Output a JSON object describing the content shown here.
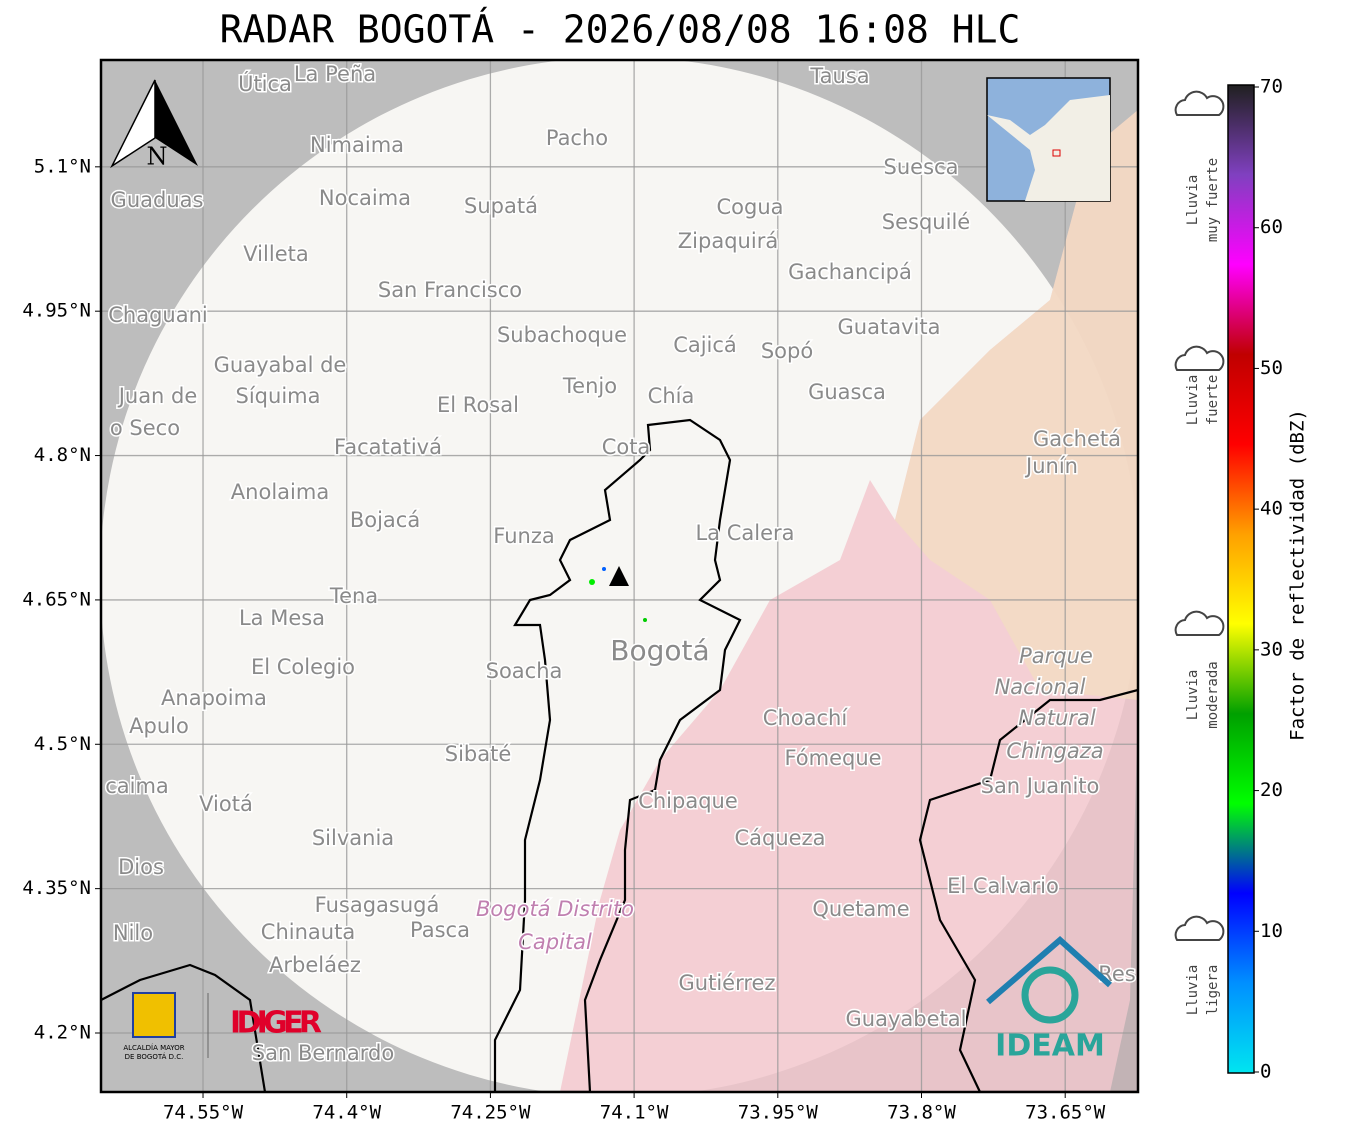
{
  "title": "RADAR BOGOTÁ - 2026/08/08 16:08 HLC",
  "map": {
    "xlim": [
      -74.6565,
      -73.574
    ],
    "ylim": [
      4.1387,
      5.211
    ],
    "xticks": [
      {
        "value": -74.55,
        "label": "74.55°W"
      },
      {
        "value": -74.4,
        "label": "74.4°W"
      },
      {
        "value": -74.25,
        "label": "74.25°W"
      },
      {
        "value": -74.1,
        "label": "74.1°W"
      },
      {
        "value": -73.95,
        "label": "73.95°W"
      },
      {
        "value": -73.8,
        "label": "73.8°W"
      },
      {
        "value": -73.65,
        "label": "73.65°W"
      }
    ],
    "yticks": [
      {
        "value": 4.2,
        "label": "4.2°N"
      },
      {
        "value": 4.35,
        "label": "4.35°N"
      },
      {
        "value": 4.5,
        "label": "4.5°N"
      },
      {
        "value": 4.65,
        "label": "4.65°N"
      },
      {
        "value": 4.8,
        "label": "4.8°N"
      },
      {
        "value": 4.95,
        "label": "4.95°N"
      },
      {
        "value": 5.1,
        "label": "5.1°N"
      }
    ],
    "grid": true,
    "north": "N",
    "labels": [
      "Útica",
      "La Peña",
      "Tausa",
      "Pacho",
      "Nimaima",
      "Guaduas",
      "Nocaima",
      "Supatá",
      "Cogua",
      "Suesca",
      "Sesquilé",
      "Zipaquirá",
      "Villeta",
      "Gachancipá",
      "San Francisco",
      "Chaguani",
      "Guatavita",
      "Subachoque",
      "Cajicá",
      "Sopó",
      "Guayabal de",
      "Síquima",
      "Tenjo",
      "Guasca",
      "Juan de",
      "o Seco",
      "El Rosal",
      "Chía",
      "Gachetá",
      "Junín",
      "Facatativá",
      "Cota",
      "Anolaima",
      "Bojacá",
      "Funza",
      "La Calera",
      "Tena",
      "La Mesa",
      "El Colegio",
      "Bogotá",
      "Soacha",
      "Parque",
      "Nacional",
      "Natural",
      "Chingaza",
      "Anapoima",
      "Apulo",
      "Choachí",
      "Fómeque",
      "Sibaté",
      "San Juanito",
      "caima",
      "Viotá",
      "Chipaque",
      "Silvania",
      "Cáqueza",
      "Dios",
      "El Calvario",
      "Fusagasugá",
      "Bogotá Distrito",
      "Capital",
      "Quetame",
      "Nilo",
      "Chinauta",
      "Pasca",
      "Arbeláez",
      "Gutiérrez",
      "Res",
      "Guayabetal",
      "San Bernardo"
    ]
  },
  "colorbar": {
    "label": "Factor de reflectividad (dBZ)",
    "lim": [
      0,
      70
    ],
    "ticks": [
      0,
      10,
      20,
      30,
      40,
      50,
      60,
      70
    ],
    "colors": [
      "#00e5f0",
      "#0090ff",
      "#0000ff",
      "#00ff00",
      "#00a000",
      "#ffff00",
      "#ffa000",
      "#ff0000",
      "#c00000",
      "#ff00ff",
      "#8040c0",
      "#202020"
    ]
  },
  "rain_levels": [
    [
      "Lluvia",
      "muy fuerte"
    ],
    [
      "Lluvia",
      "fuerte"
    ],
    [
      "Lluvia",
      "moderada"
    ],
    [
      "Lluvia",
      "ligera"
    ]
  ],
  "logos": {
    "idiger": "IDIGER",
    "alcaldia": [
      "ALCALDÍA MAYOR",
      "DE BOGOTÁ D.C."
    ],
    "ideam": "IDEAM"
  }
}
